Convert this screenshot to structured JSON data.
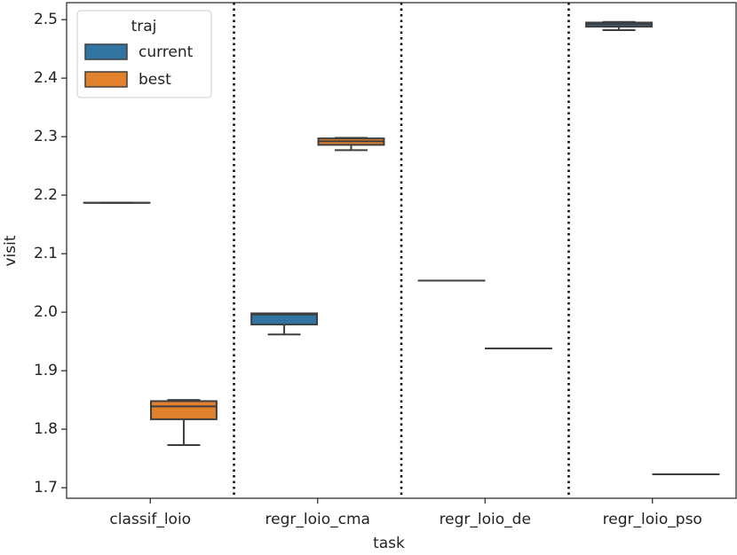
{
  "chart_data": {
    "type": "box",
    "xlabel": "task",
    "ylabel": "visit",
    "categories": [
      "classif_loio",
      "regr_loio_cma",
      "regr_loio_de",
      "regr_loio_pso"
    ],
    "legend": {
      "title": "traj",
      "loc": "upper left"
    },
    "series": [
      {
        "name": "current",
        "color": "#3274a1",
        "values": [
          {
            "min": 2.187,
            "q1": 2.187,
            "median": 2.187,
            "q3": 2.187,
            "max": 2.187
          },
          {
            "min": 1.962,
            "q1": 1.979,
            "median": 1.996,
            "q3": 1.998,
            "max": 1.998
          },
          {
            "min": 2.054,
            "q1": 2.054,
            "median": 2.054,
            "q3": 2.054,
            "max": 2.054
          },
          {
            "min": 2.482,
            "q1": 2.488,
            "median": 2.492,
            "q3": 2.495,
            "max": 2.496
          }
        ]
      },
      {
        "name": "best",
        "color": "#e1812c",
        "values": [
          {
            "min": 1.773,
            "q1": 1.817,
            "median": 1.839,
            "q3": 1.848,
            "max": 1.85
          },
          {
            "min": 2.277,
            "q1": 2.286,
            "median": 2.292,
            "q3": 2.297,
            "max": 2.298
          },
          {
            "min": 1.938,
            "q1": 1.938,
            "median": 1.938,
            "q3": 1.938,
            "max": 1.938
          },
          {
            "min": 1.723,
            "q1": 1.723,
            "median": 1.723,
            "q3": 1.723,
            "max": 1.723
          }
        ]
      }
    ],
    "ylim": [
      1.682,
      2.529
    ],
    "yticks": [
      1.7,
      1.8,
      1.9,
      {
        "value": 2,
        "label": "2.0"
      },
      2.1,
      2.2,
      2.3,
      2.4,
      2.5
    ],
    "grid": false
  }
}
